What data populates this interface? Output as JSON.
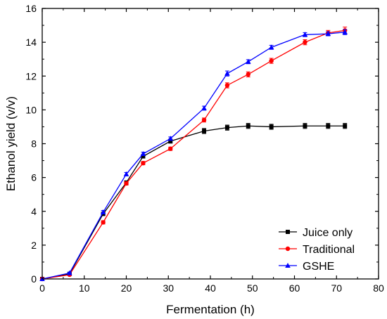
{
  "chart_data": {
    "type": "line",
    "xlabel": "Fermentation (h)",
    "ylabel": "Ethanol yield (v/v)",
    "xlim": [
      0,
      80
    ],
    "ylim": [
      0,
      16
    ],
    "xticks": [
      0,
      10,
      20,
      30,
      40,
      50,
      60,
      70,
      80
    ],
    "yticks": [
      0,
      2,
      4,
      6,
      8,
      10,
      12,
      14,
      16
    ],
    "legend_position": "bottom-right",
    "error_bars": true,
    "series": [
      {
        "name": "Juice only",
        "color": "#000000",
        "marker": "square",
        "x": [
          0,
          6.5,
          14.5,
          20,
          24,
          30.5,
          38.5,
          44,
          49,
          54.5,
          62.5,
          68,
          72
        ],
        "y": [
          0,
          0.3,
          3.85,
          5.7,
          7.25,
          8.15,
          8.75,
          8.95,
          9.05,
          9.0,
          9.05,
          9.05,
          9.05
        ],
        "err": [
          0,
          0.05,
          0.1,
          0.1,
          0.1,
          0.12,
          0.15,
          0.15,
          0.15,
          0.15,
          0.15,
          0.15,
          0.15
        ]
      },
      {
        "name": "Traditional",
        "color": "#ff0000",
        "marker": "circle",
        "x": [
          0,
          6.5,
          14.5,
          20,
          24,
          30.5,
          38.5,
          44,
          49,
          54.5,
          62.5,
          68,
          72
        ],
        "y": [
          0,
          0.25,
          3.35,
          5.65,
          6.85,
          7.7,
          9.4,
          11.45,
          12.1,
          12.9,
          14.0,
          14.55,
          14.7
        ],
        "err": [
          0,
          0.05,
          0.1,
          0.1,
          0.1,
          0.1,
          0.12,
          0.15,
          0.15,
          0.15,
          0.15,
          0.15,
          0.2
        ]
      },
      {
        "name": "GSHE",
        "color": "#0000ff",
        "marker": "triangle",
        "x": [
          0,
          6.5,
          14.5,
          20,
          24,
          30.5,
          38.5,
          44,
          49,
          54.5,
          62.5,
          68,
          72
        ],
        "y": [
          0,
          0.35,
          3.95,
          6.2,
          7.4,
          8.3,
          10.1,
          12.15,
          12.85,
          13.7,
          14.45,
          14.5,
          14.6
        ],
        "err": [
          0,
          0.05,
          0.1,
          0.1,
          0.1,
          0.1,
          0.12,
          0.15,
          0.12,
          0.12,
          0.12,
          0.12,
          0.15
        ]
      }
    ]
  }
}
